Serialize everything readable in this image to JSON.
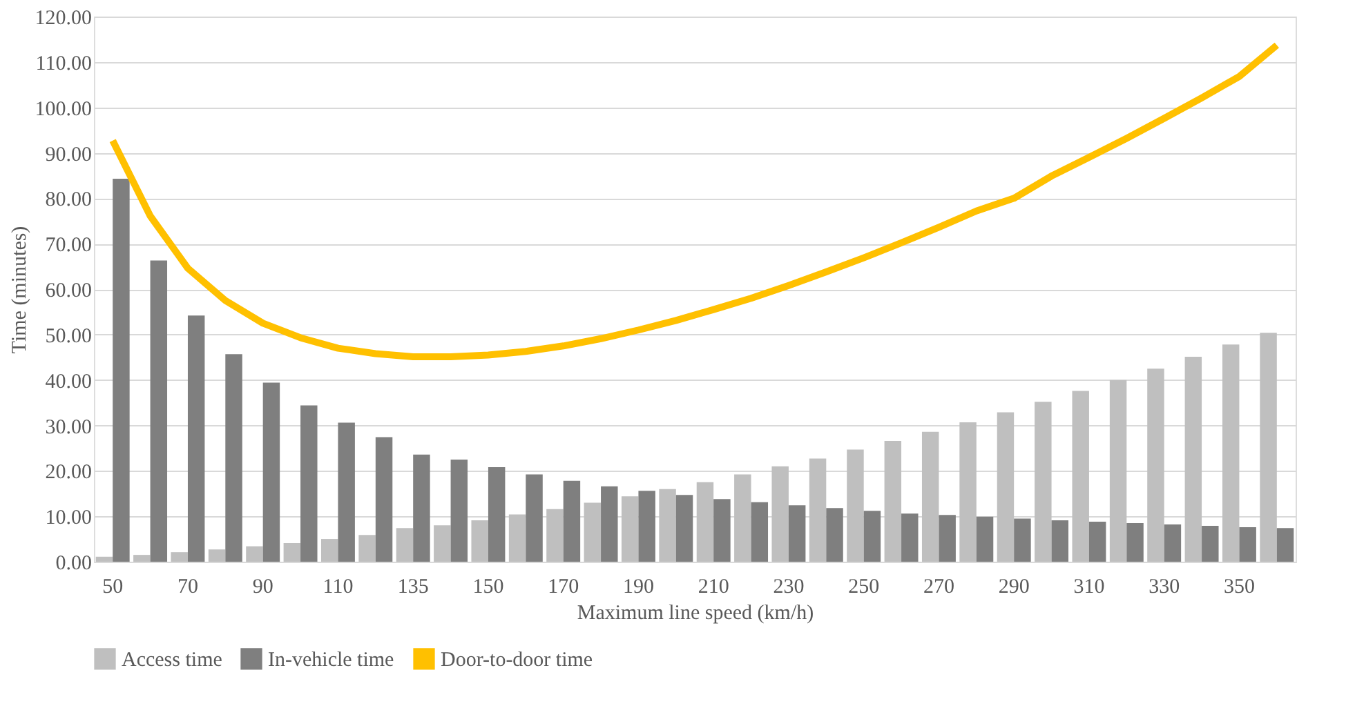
{
  "chart_data": {
    "type": "bar",
    "xlabel": "Maximum line speed (km/h)",
    "ylabel": "Time (minutes)",
    "categories": [
      "50",
      null,
      "70",
      null,
      "90",
      null,
      "110",
      null,
      "135",
      null,
      "150",
      null,
      "170",
      null,
      "190",
      null,
      "210",
      null,
      "230",
      null,
      "250",
      null,
      "270",
      null,
      "290",
      null,
      "310",
      null,
      "330",
      null,
      "350",
      null
    ],
    "series": [
      {
        "name": "Access time",
        "color": "#bfbfbf",
        "values": [
          1.1,
          1.5,
          2.1,
          2.7,
          3.4,
          4.1,
          5.0,
          5.9,
          7.4,
          8.0,
          9.1,
          10.4,
          11.6,
          13.0,
          14.4,
          16.0,
          17.5,
          19.2,
          21.0,
          22.7,
          24.7,
          26.6,
          28.6,
          30.7,
          32.9,
          35.2,
          37.6,
          40.0,
          42.5,
          45.1,
          47.8,
          50.4
        ]
      },
      {
        "name": "In-vehicle time",
        "color": "#7f7f7f",
        "values": [
          84.3,
          66.3,
          54.2,
          45.7,
          39.4,
          34.4,
          30.6,
          27.4,
          23.6,
          22.5,
          20.8,
          19.2,
          17.8,
          16.6,
          15.6,
          14.7,
          13.8,
          13.1,
          12.4,
          11.8,
          11.2,
          10.6,
          10.3,
          9.9,
          9.5,
          9.1,
          8.8,
          8.5,
          8.2,
          7.9,
          7.6,
          7.4
        ]
      },
      {
        "name": "Door-to-door time",
        "type": "line",
        "color": "#ffc000",
        "values": [
          92.7,
          76.1,
          64.6,
          57.5,
          52.5,
          49.3,
          47.0,
          45.8,
          45.1,
          45.1,
          45.5,
          46.3,
          47.5,
          49.1,
          51.0,
          53.1,
          55.5,
          58.0,
          60.8,
          63.8,
          66.9,
          70.2,
          73.6,
          77.2,
          80.0,
          84.9,
          89.0,
          93.2,
          97.6,
          102.1,
          106.8,
          113.7
        ]
      }
    ],
    "ylim": [
      0,
      120
    ],
    "yticks": [
      {
        "value": 0,
        "label": "0.00"
      },
      {
        "value": 10,
        "label": "10.00"
      },
      {
        "value": 20,
        "label": "20.00"
      },
      {
        "value": 30,
        "label": "30.00"
      },
      {
        "value": 40,
        "label": "40.00"
      },
      {
        "value": 50,
        "label": "50.00"
      },
      {
        "value": 60,
        "label": "60.00"
      },
      {
        "value": 70,
        "label": "70.00"
      },
      {
        "value": 80,
        "label": "80.00"
      },
      {
        "value": 90,
        "label": "90.00"
      },
      {
        "value": 100,
        "label": "100.00"
      },
      {
        "value": 110,
        "label": "110.00"
      },
      {
        "value": 120,
        "label": "120.00"
      }
    ],
    "grid": "y",
    "legend": "bottom"
  }
}
